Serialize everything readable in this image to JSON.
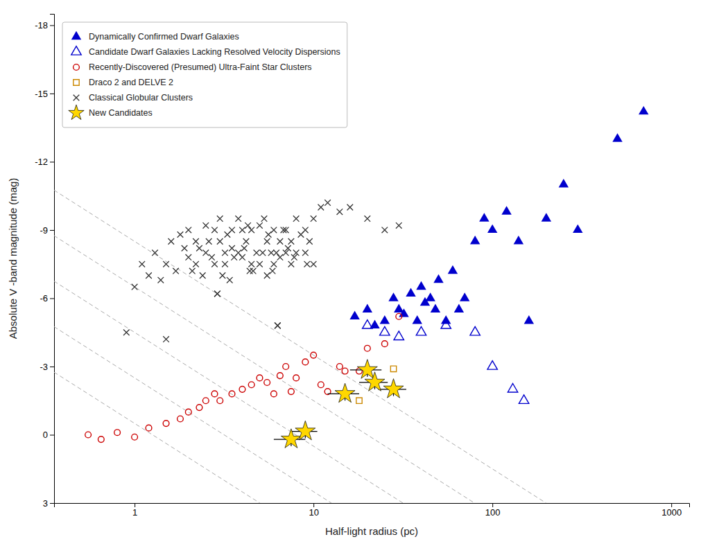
{
  "chart_data": {
    "type": "scatter",
    "xlabel": "Half-light radius (pc)",
    "ylabel": "Absolute V -band magnitude (mag)",
    "log": "x",
    "xlim": [
      0.35481339,
      1258.9254
    ],
    "xticks": [
      1,
      10,
      100,
      1000
    ],
    "ylim": [
      3.0,
      -18.5
    ],
    "yticks": [
      3,
      0,
      -3,
      -6,
      -9,
      -12,
      -15,
      -18
    ],
    "grid": false,
    "legend": "upper-left",
    "series": [
      {
        "type": "line",
        "line_style": "dashed",
        "color": "#aaaaaa",
        "x": [
          0.35481339,
          199.526
        ],
        "values": [
          -10.75,
          3.0
        ]
      },
      {
        "type": "line",
        "line_style": "dashed",
        "color": "#aaaaaa",
        "x": [
          0.35481339,
          79.4328
        ],
        "values": [
          -8.75,
          3.0
        ]
      },
      {
        "type": "line",
        "line_style": "dashed",
        "color": "#aaaaaa",
        "x": [
          0.35481339,
          31.6228
        ],
        "values": [
          -6.75,
          3.0
        ]
      },
      {
        "type": "line",
        "line_style": "dashed",
        "color": "#aaaaaa",
        "x": [
          0.35481339,
          12.5893
        ],
        "values": [
          -4.75,
          3.0
        ]
      },
      {
        "type": "line",
        "line_style": "dashed",
        "color": "#aaaaaa",
        "x": [
          0.35481339,
          5.01187
        ],
        "values": [
          -2.75,
          3.0
        ]
      },
      {
        "name": "Dynamically Confirmed Dwarf Galaxies",
        "type": "scatter",
        "marker": "triangle",
        "color": "#0000CD",
        "x": [
          17,
          20,
          22,
          25,
          28,
          30,
          32,
          35,
          38,
          40,
          42,
          45,
          48,
          50,
          55,
          60,
          65,
          70,
          80,
          90,
          100,
          120,
          140,
          160,
          200,
          250,
          300,
          500,
          700
        ],
        "values": [
          -5.2,
          -5.5,
          -4.8,
          -5.0,
          -6.0,
          -5.5,
          -5.3,
          -6.2,
          -5.0,
          -6.5,
          -5.8,
          -6.0,
          -5.5,
          -6.8,
          -5.0,
          -7.2,
          -5.5,
          -6.0,
          -8.5,
          -9.5,
          -9.0,
          -9.8,
          -8.5,
          -5.0,
          -9.5,
          -11.0,
          -9.0,
          -13.0,
          -14.2
        ]
      },
      {
        "name": "Candidate Dwarf Galaxies Lacking Resolved Velocity Dispersions",
        "type": "scatter",
        "marker": "triangle-open",
        "color": "#0000CD",
        "x": [
          20,
          25,
          30,
          40,
          55,
          80,
          100,
          130,
          150
        ],
        "values": [
          -4.8,
          -4.5,
          -4.3,
          -4.5,
          -4.8,
          -4.5,
          -3.0,
          -2.0,
          -1.5
        ]
      },
      {
        "name": "Recently-Discovered (Presumed) Ultra-Faint Star Clusters",
        "type": "scatter",
        "marker": "circle-open",
        "color": "#cc0000",
        "x": [
          0.55,
          0.65,
          0.8,
          1.0,
          1.2,
          1.5,
          1.8,
          2.0,
          2.3,
          2.5,
          2.8,
          3.0,
          3.5,
          4.0,
          4.5,
          5.0,
          5.5,
          6.0,
          6.5,
          7.0,
          7.5,
          8.0,
          9.0,
          10.0,
          11.0,
          12.0,
          14.0,
          15.0,
          18.0,
          20.0,
          25.0,
          30.0
        ],
        "values": [
          0.0,
          0.2,
          -0.1,
          0.1,
          -0.3,
          -0.5,
          -0.7,
          -1.0,
          -1.2,
          -1.5,
          -1.8,
          -1.5,
          -1.8,
          -2.0,
          -2.2,
          -2.5,
          -2.3,
          -1.8,
          -2.6,
          -3.0,
          -1.9,
          -2.5,
          -3.2,
          -3.5,
          -2.2,
          -1.9,
          -3.0,
          -2.8,
          -2.8,
          -3.8,
          -4.0,
          -5.2
        ]
      },
      {
        "name": "Draco 2 and DELVE 2",
        "type": "scatter",
        "marker": "square-open",
        "color": "#cc8800",
        "x": [
          18,
          28
        ],
        "values": [
          -1.5,
          -2.9
        ]
      },
      {
        "name": "Classical Globular Clusters",
        "type": "scatter",
        "marker": "x",
        "color": "#333333",
        "x": [
          1.0,
          1.1,
          1.2,
          1.3,
          1.4,
          1.5,
          1.6,
          1.7,
          1.8,
          1.9,
          2.0,
          2.0,
          2.1,
          2.2,
          2.2,
          2.3,
          2.4,
          2.5,
          2.5,
          2.6,
          2.7,
          2.8,
          2.8,
          2.9,
          3.0,
          3.0,
          3.1,
          3.2,
          3.2,
          3.3,
          3.5,
          3.5,
          3.6,
          3.8,
          3.8,
          4.0,
          4.0,
          4.1,
          4.2,
          4.3,
          4.5,
          4.5,
          4.6,
          4.8,
          5.0,
          5.0,
          5.2,
          5.3,
          5.5,
          5.5,
          5.6,
          5.8,
          5.9,
          6.0,
          6.0,
          6.2,
          6.3,
          6.5,
          6.5,
          6.8,
          7.0,
          7.0,
          7.2,
          7.5,
          7.5,
          7.8,
          8.0,
          8.0,
          8.5,
          9.0,
          9.0,
          9.2,
          9.5,
          10.0,
          10.0,
          11.0,
          12.0,
          14.0,
          16.0,
          20.0,
          25.0,
          30.0,
          0.9,
          1.5,
          2.9,
          3.4,
          4.4,
          6.3
        ],
        "values": [
          -6.5,
          -7.5,
          -7.0,
          -8.0,
          -6.8,
          -7.5,
          -8.5,
          -7.2,
          -8.8,
          -8.2,
          -7.8,
          -9.0,
          -7.2,
          -7.5,
          -8.5,
          -8.2,
          -7.0,
          -8.0,
          -9.2,
          -8.5,
          -7.8,
          -9.0,
          -7.5,
          -6.2,
          -8.5,
          -9.5,
          -7.0,
          -8.0,
          -7.5,
          -8.8,
          -9.0,
          -8.2,
          -7.8,
          -9.5,
          -8.0,
          -9.0,
          -7.8,
          -8.2,
          -8.5,
          -9.2,
          -7.5,
          -9.0,
          -7.2,
          -8.0,
          -7.5,
          -9.2,
          -8.0,
          -9.5,
          -8.5,
          -7.0,
          -8.8,
          -8.0,
          -7.2,
          -7.5,
          -9.0,
          -8.0,
          -4.8,
          -8.5,
          -7.8,
          -9.0,
          -9.0,
          -8.0,
          -8.2,
          -8.5,
          -7.5,
          -7.8,
          -9.5,
          -8.0,
          -8.8,
          -8.0,
          -9.0,
          -7.5,
          -8.5,
          -9.5,
          -7.5,
          -10.0,
          -10.2,
          -9.8,
          -10.0,
          -9.5,
          -9.0,
          -9.2,
          -4.5,
          -4.2,
          -6.2,
          -6.8,
          -7.2,
          -4.8
        ]
      },
      {
        "name": "New Candidates",
        "type": "scatter",
        "marker": "star",
        "color": "#FFD700",
        "x": [
          7.5,
          9.0,
          15.0,
          20.0,
          22.0,
          28.0
        ],
        "values": [
          0.2,
          -0.15,
          -1.8,
          -2.85,
          -2.3,
          -2.0
        ],
        "xerr": [
          1.5,
          1.5,
          3.0,
          4.0,
          4.0,
          5.0
        ],
        "yerr": [
          0.3,
          0.3,
          0.3,
          0.3,
          0.3,
          0.3
        ]
      }
    ]
  }
}
